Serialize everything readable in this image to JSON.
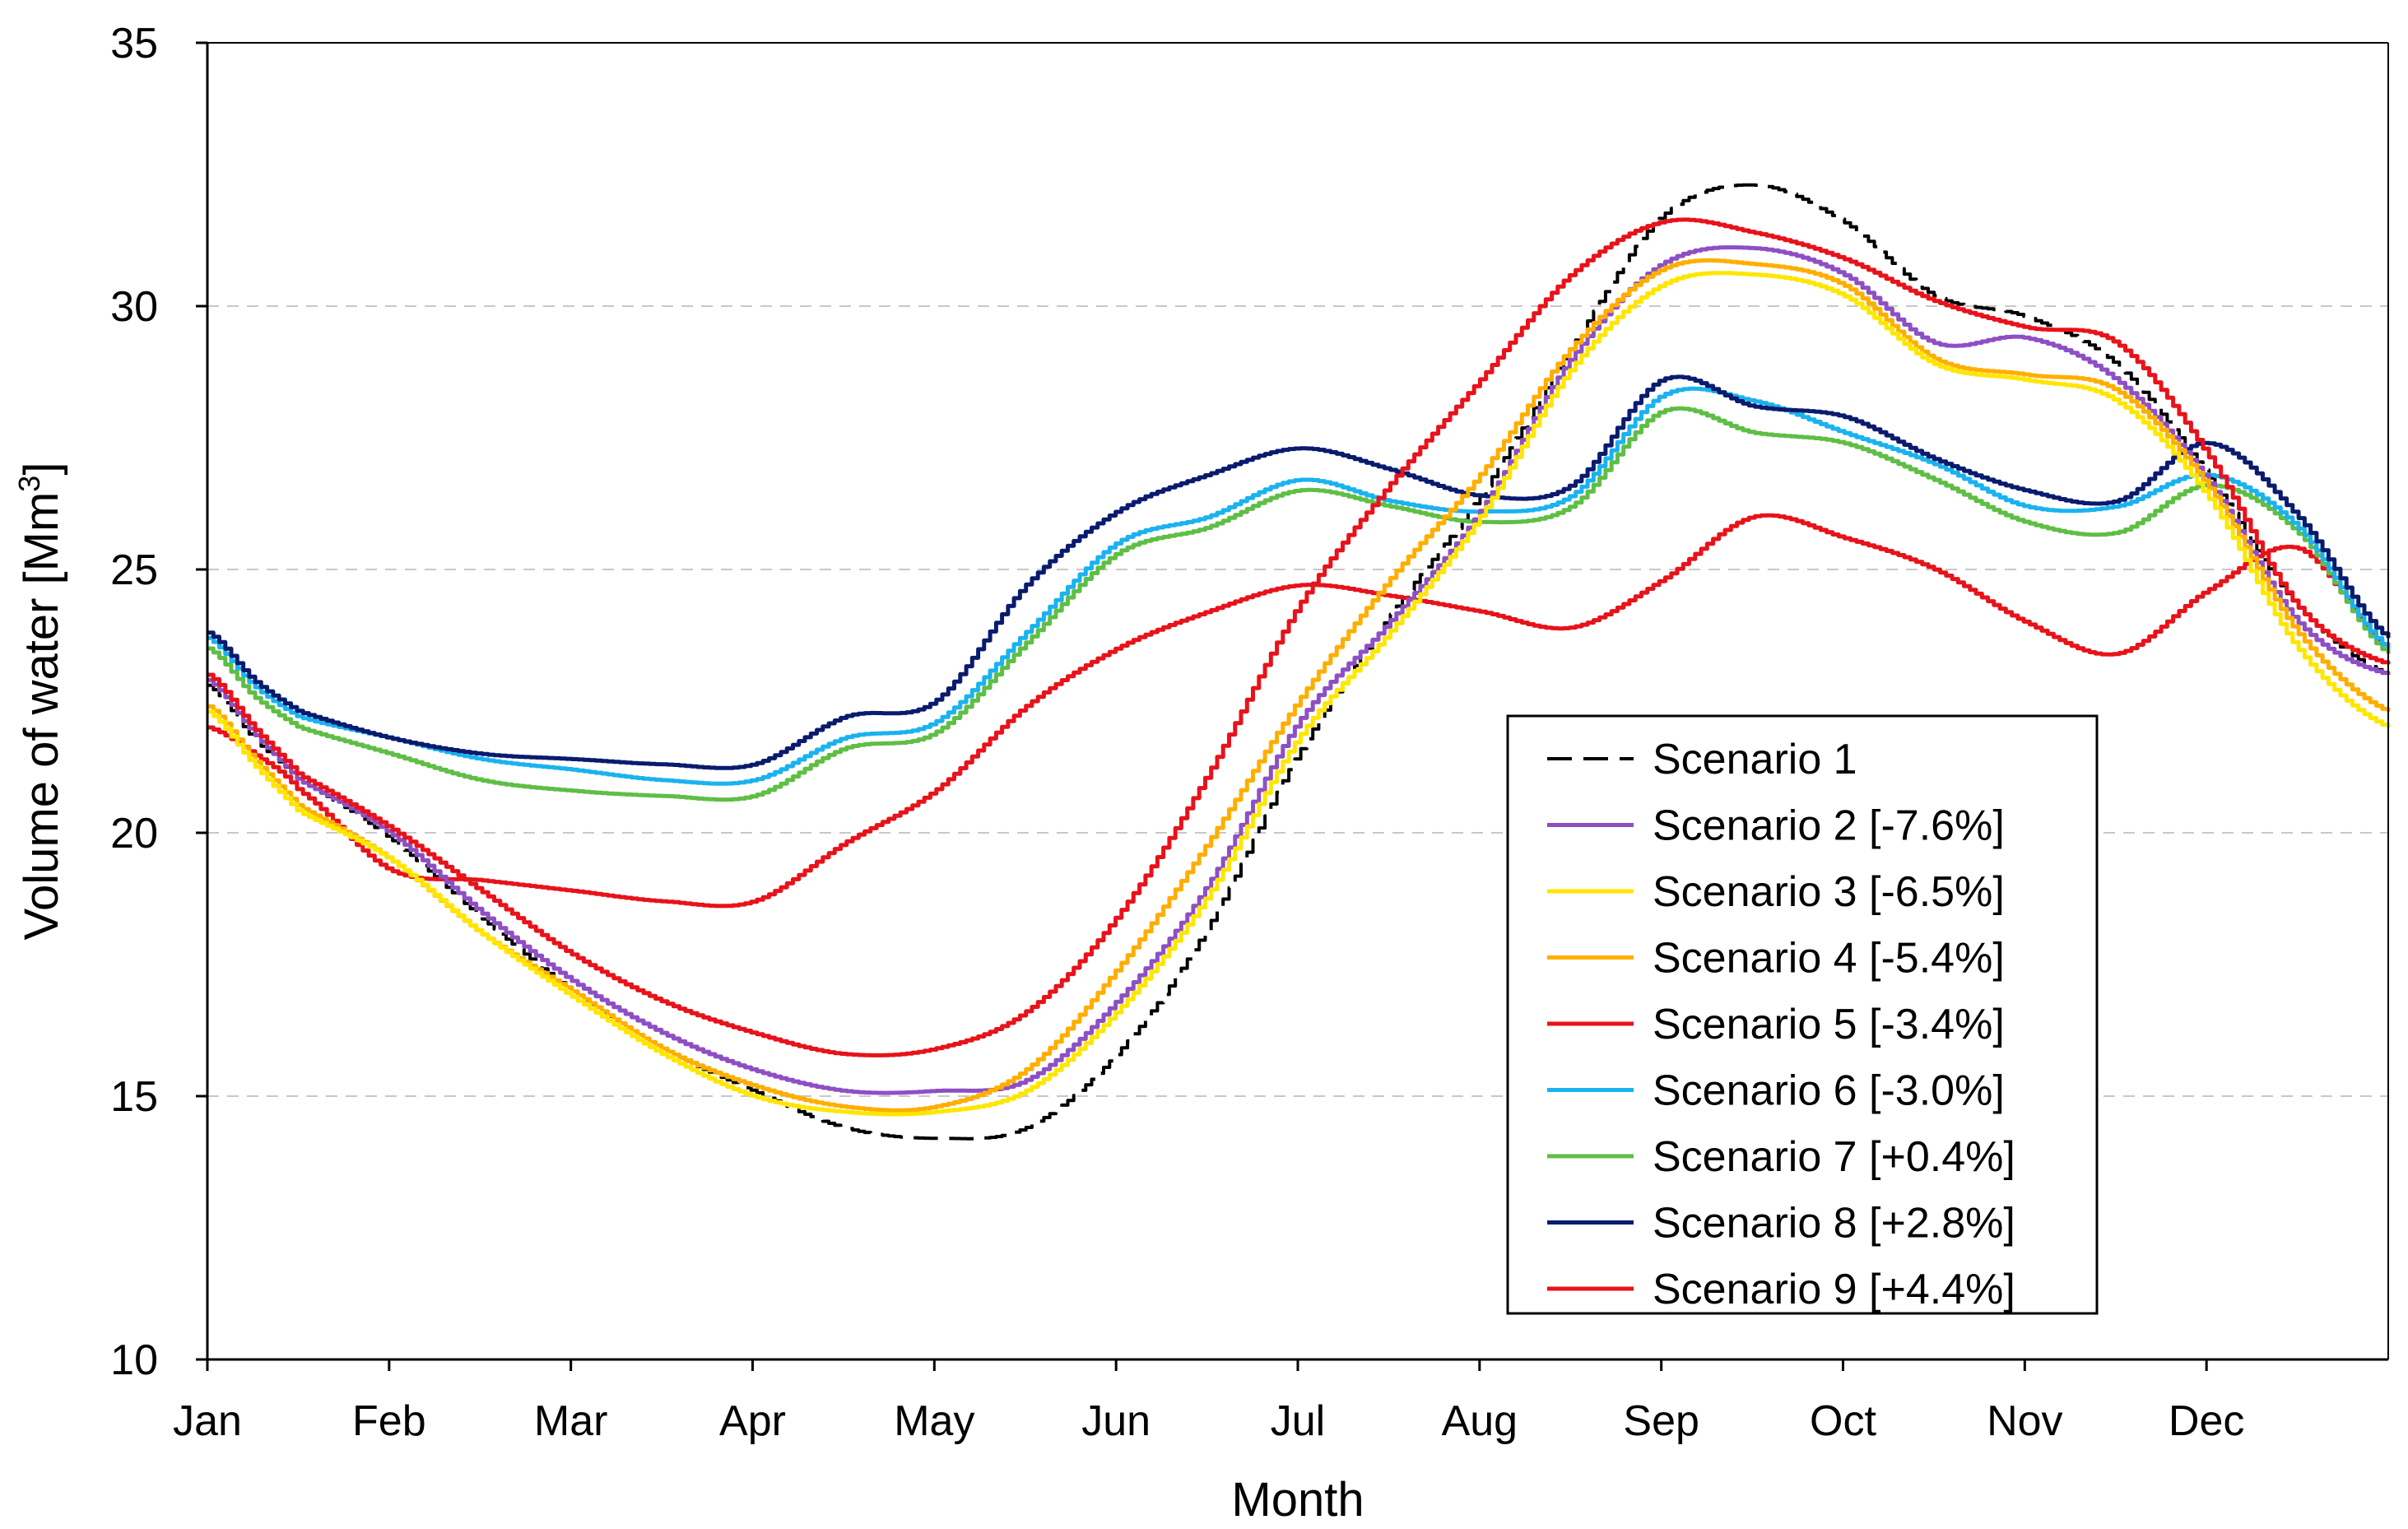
{
  "chart_data": {
    "type": "line",
    "title": "",
    "xlabel": "Month",
    "ylabel": "Volume of water [Mm",
    "ylabel_superscript": "3",
    "ylabel_suffix": "]",
    "ylim": [
      10,
      35
    ],
    "yticks": [
      10,
      15,
      20,
      25,
      30,
      35
    ],
    "x_categories": [
      "Jan",
      "Feb",
      "Mar",
      "Apr",
      "May",
      "Jun",
      "Jul",
      "Aug",
      "Sep",
      "Oct",
      "Nov",
      "Dec"
    ],
    "x_range_months": [
      0,
      12
    ],
    "grid": "horizontal dashed",
    "legend_position": "center-right",
    "x": [
      0,
      0.25,
      0.5,
      1,
      1.5,
      2,
      2.5,
      3,
      3.5,
      4,
      4.5,
      5,
      5.5,
      6,
      6.5,
      7,
      7.5,
      8,
      8.5,
      9,
      9.5,
      10,
      10.5,
      11,
      11.5,
      12
    ],
    "series": [
      {
        "name": "Scenario 1",
        "color": "#000000",
        "dash": "dashed",
        "values": [
          22.8,
          21.8,
          21.0,
          19.9,
          18.4,
          17.0,
          15.9,
          15.1,
          14.4,
          14.2,
          14.4,
          15.8,
          18.2,
          21.5,
          24.1,
          26.4,
          29.2,
          31.7,
          32.3,
          31.6,
          30.2,
          29.8,
          28.9,
          26.8,
          24.3,
          23.0
        ]
      },
      {
        "name": "Scenario 2 [-7.6%]",
        "color": "#8e4fc4",
        "dash": "solid",
        "values": [
          22.9,
          21.9,
          21.0,
          20.0,
          18.5,
          17.2,
          16.2,
          15.5,
          15.1,
          15.1,
          15.3,
          16.8,
          19.0,
          22.1,
          24.0,
          26.1,
          29.0,
          30.8,
          31.1,
          30.6,
          29.3,
          29.4,
          28.6,
          26.7,
          24.0,
          23.0
        ]
      },
      {
        "name": "Scenario 3 [-6.5%]",
        "color": "#ffe600",
        "dash": "solid",
        "values": [
          22.3,
          21.3,
          20.4,
          19.5,
          18.1,
          16.9,
          15.8,
          15.0,
          14.7,
          14.7,
          15.1,
          16.6,
          18.8,
          21.8,
          23.8,
          26.0,
          28.8,
          30.4,
          30.6,
          30.2,
          28.9,
          28.6,
          28.2,
          26.4,
          23.5,
          22.0
        ]
      },
      {
        "name": "Scenario 4 [-5.4%]",
        "color": "#ffae00",
        "dash": "solid",
        "values": [
          22.4,
          21.4,
          20.5,
          19.5,
          18.1,
          17.0,
          15.9,
          15.2,
          14.8,
          14.8,
          15.5,
          17.4,
          19.8,
          22.5,
          24.8,
          26.8,
          29.2,
          30.7,
          30.8,
          30.4,
          29.0,
          28.7,
          28.4,
          26.6,
          23.8,
          22.3
        ]
      },
      {
        "name": "Scenario 5 [-3.4%]",
        "color": "#e8121a",
        "dash": "solid",
        "values": [
          22.0,
          21.5,
          20.8,
          19.3,
          19.1,
          18.9,
          18.7,
          18.7,
          19.8,
          20.8,
          22.4,
          23.5,
          24.2,
          24.7,
          24.5,
          24.2,
          23.9,
          24.8,
          26.0,
          25.6,
          25.0,
          24.0,
          23.4,
          24.6,
          25.4,
          23.5
        ]
      },
      {
        "name": "Scenario 6 [-3.0%]",
        "color": "#1ab2ef",
        "dash": "solid",
        "values": [
          23.7,
          22.8,
          22.2,
          21.8,
          21.4,
          21.2,
          21.0,
          21.0,
          21.8,
          22.1,
          23.8,
          25.5,
          26.0,
          26.7,
          26.3,
          26.1,
          26.4,
          28.3,
          28.2,
          27.6,
          27.0,
          26.2,
          26.2,
          26.8,
          25.8,
          23.5
        ]
      },
      {
        "name": "Scenario 7 [+0.4%]",
        "color": "#5fbe45",
        "dash": "solid",
        "values": [
          23.5,
          22.6,
          22.0,
          21.5,
          21.0,
          20.8,
          20.7,
          20.7,
          21.6,
          21.9,
          23.6,
          25.3,
          25.8,
          26.5,
          26.2,
          25.9,
          26.2,
          28.0,
          27.6,
          27.4,
          26.7,
          25.9,
          25.7,
          26.6,
          25.7,
          23.4
        ]
      },
      {
        "name": "Scenario 8 [+2.8%]",
        "color": "#0a1b6e",
        "dash": "solid",
        "values": [
          23.8,
          22.9,
          22.3,
          21.8,
          21.5,
          21.4,
          21.3,
          21.3,
          22.2,
          22.5,
          24.7,
          26.1,
          26.8,
          27.3,
          26.9,
          26.4,
          26.6,
          28.6,
          28.1,
          27.9,
          27.1,
          26.5,
          26.3,
          27.4,
          26.0,
          23.7
        ]
      },
      {
        "name": "Scenario 9 [+4.4%]",
        "color": "#e8121a",
        "dash": "solid",
        "values": [
          23.0,
          22.0,
          21.1,
          20.1,
          18.9,
          17.7,
          16.8,
          16.2,
          15.8,
          15.9,
          16.6,
          18.4,
          21.1,
          24.3,
          26.6,
          28.6,
          30.6,
          31.6,
          31.4,
          30.9,
          30.1,
          29.6,
          29.3,
          27.2,
          24.3,
          23.2
        ]
      }
    ]
  }
}
